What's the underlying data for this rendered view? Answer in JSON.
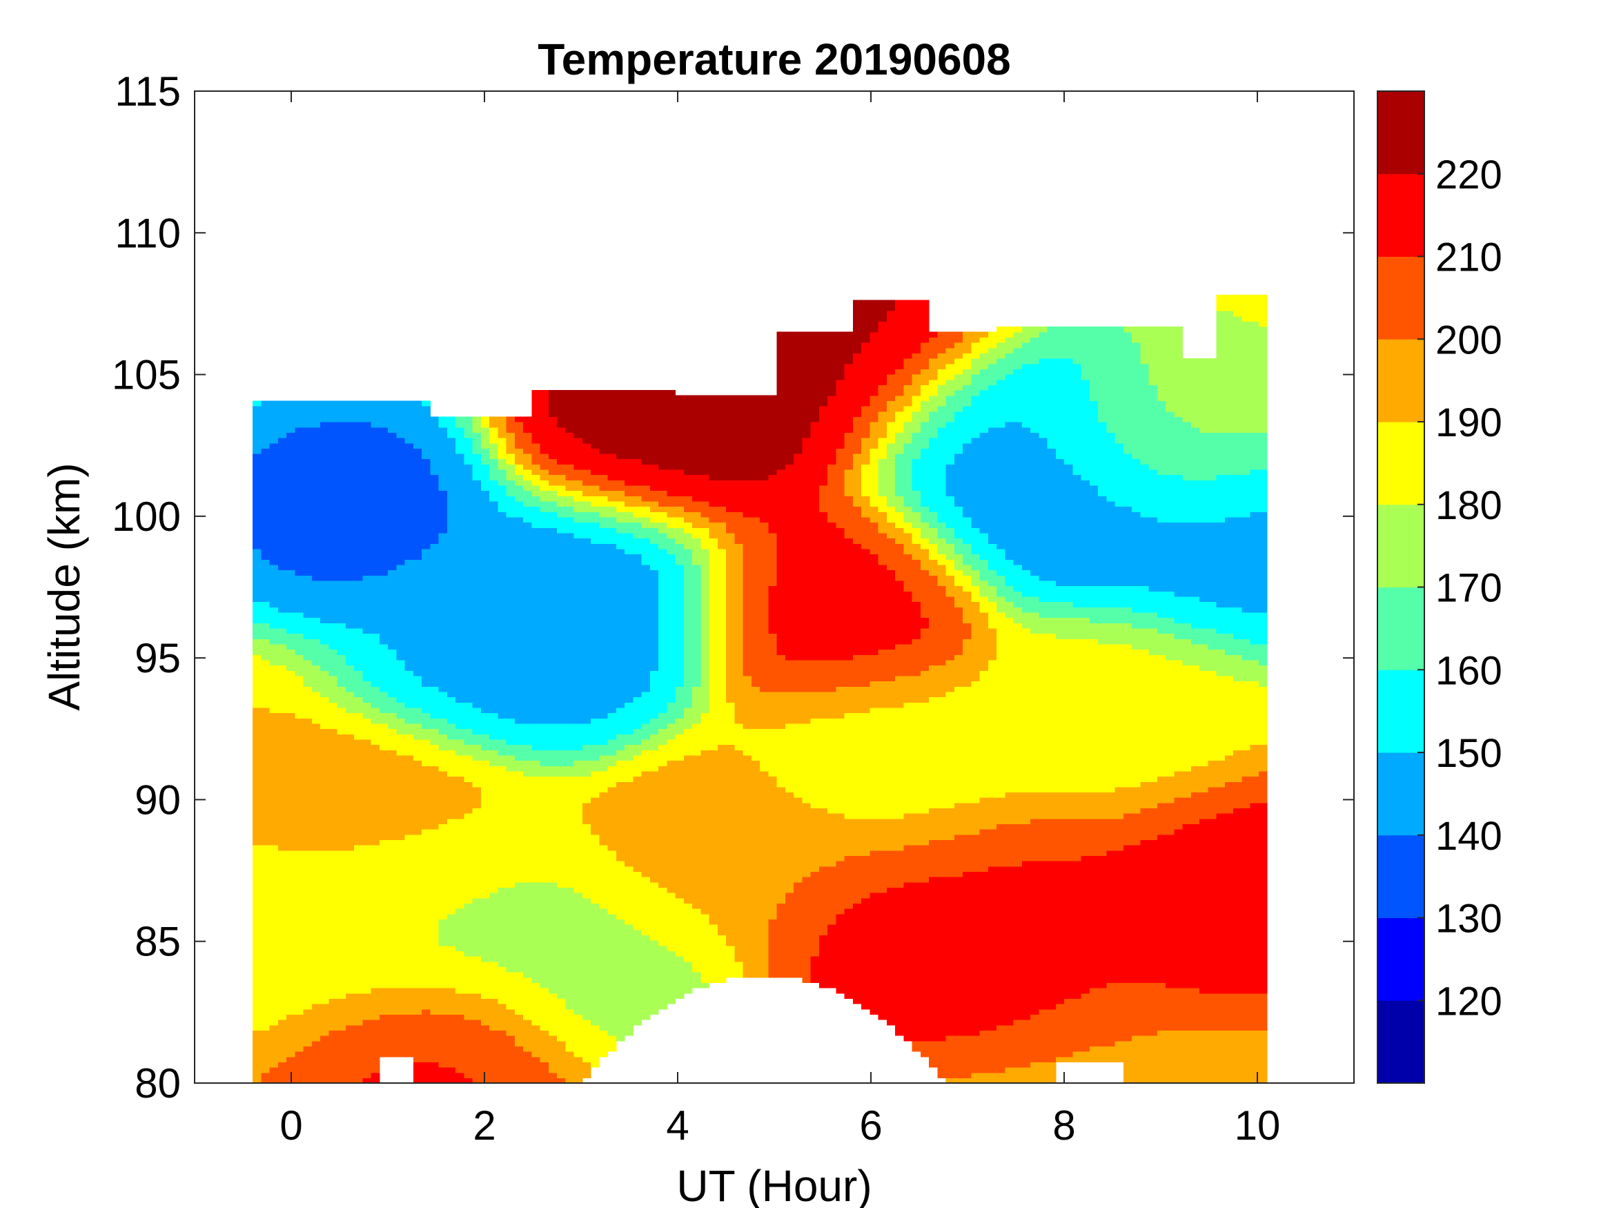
{
  "chart_data": {
    "type": "heatmap",
    "subtype": "filled-contour",
    "title": "Temperature 20190608",
    "xlabel": "UT (Hour)",
    "ylabel": "Altitude (km)",
    "xlim": [
      -1,
      11
    ],
    "ylim": [
      80,
      115
    ],
    "xticks": [
      0,
      2,
      4,
      6,
      8,
      10
    ],
    "yticks": [
      80,
      85,
      90,
      95,
      100,
      105,
      110,
      115
    ],
    "data_range": {
      "x": [
        -0.4,
        10.1
      ],
      "y": [
        80,
        108
      ]
    },
    "colorbar": {
      "range": [
        110,
        230
      ],
      "ticks": [
        120,
        130,
        140,
        150,
        160,
        170,
        180,
        190,
        200,
        210,
        220
      ],
      "levels": [
        110,
        120,
        130,
        140,
        150,
        160,
        170,
        180,
        190,
        200,
        210,
        220,
        230
      ],
      "colors": [
        "#0000aa",
        "#0000ff",
        "#0055ff",
        "#00aaff",
        "#00ffff",
        "#55ffaa",
        "#aaff55",
        "#ffff00",
        "#ffaa00",
        "#ff5500",
        "#ff0000",
        "#aa0000"
      ]
    },
    "features": [
      {
        "x": 0.6,
        "y": 100.5,
        "value": 135
      },
      {
        "x": 3.0,
        "y": 97.5,
        "value": 140
      },
      {
        "x": 2.5,
        "y": 95.5,
        "value": 145
      },
      {
        "x": 8.0,
        "y": 100.5,
        "value": 140
      },
      {
        "x": 7.4,
        "y": 103.2,
        "value": 145
      },
      {
        "x": 9.8,
        "y": 99.0,
        "value": 145
      },
      {
        "x": 3.8,
        "y": 103.0,
        "value": 225
      },
      {
        "x": 5.2,
        "y": 105.0,
        "value": 225
      },
      {
        "x": 6.0,
        "y": 106.8,
        "value": 222
      },
      {
        "x": 5.6,
        "y": 97.0,
        "value": 215
      },
      {
        "x": 6.3,
        "y": 85.3,
        "value": 215
      },
      {
        "x": 9.8,
        "y": 87.0,
        "value": 215
      },
      {
        "x": 7.5,
        "y": 86.0,
        "value": 212
      },
      {
        "x": 1.5,
        "y": 80.6,
        "value": 212
      },
      {
        "x": 4.5,
        "y": 88.0,
        "value": 195
      },
      {
        "x": 1.0,
        "y": 88.5,
        "value": 195
      },
      {
        "x": 6.2,
        "y": 91.0,
        "value": 185
      },
      {
        "x": 3.2,
        "y": 84.0,
        "value": 175
      },
      {
        "x": 1.5,
        "y": 86.0,
        "value": 175
      },
      {
        "x": 0.0,
        "y": 85.0,
        "value": 185
      },
      {
        "x": 9.0,
        "y": 103.0,
        "value": 175
      },
      {
        "x": 8.5,
        "y": 93.0,
        "value": 185
      }
    ]
  }
}
